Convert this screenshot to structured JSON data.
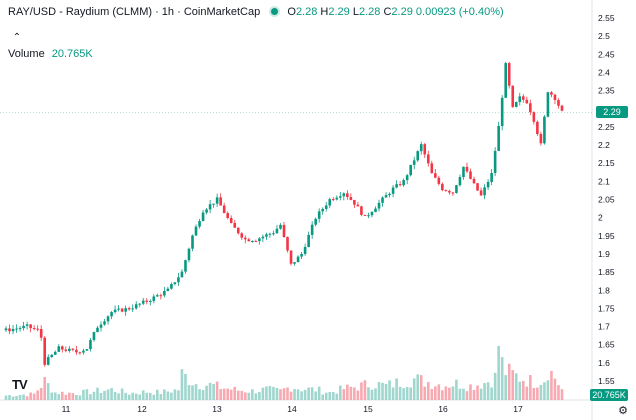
{
  "header": {
    "symbol": "RAY/USD - Raydium (CLMM) · 1h · CoinMarketCap",
    "open_label": "O",
    "open": "2.28",
    "high_label": "H",
    "high": "2.29",
    "low_label": "L",
    "low": "2.28",
    "close_label": "C",
    "close": "2.29",
    "change": "0.00923 (+0.40%)"
  },
  "volume_legend": {
    "label": "Volume",
    "value": "20.765K"
  },
  "price_tag": "2.29",
  "volume_tag": "20.765K",
  "logo_text": "TV",
  "colors": {
    "up": "#089981",
    "down": "#f23645",
    "vol_up": "#9fd6ce",
    "vol_down": "#f7a9b1"
  },
  "icons": {
    "collapse": "chevron-up-icon",
    "settings": "gear-icon",
    "logo": "tradingview-logo"
  },
  "chart_data": {
    "type": "candlestick",
    "title": "RAY/USD - Raydium (CLMM) · 1h · CoinMarketCap",
    "x_ticks": [
      "11",
      "12",
      "13",
      "14",
      "15",
      "16",
      "17"
    ],
    "y_ticks": [
      "1.55",
      "1.6",
      "1.65",
      "1.7",
      "1.75",
      "1.8",
      "1.85",
      "1.9",
      "1.95",
      "2",
      "2.05",
      "2.1",
      "2.15",
      "2.2",
      "2.25",
      "2.3",
      "2.35",
      "2.4",
      "2.45",
      "2.5",
      "2.55"
    ],
    "ylim": [
      1.51,
      2.57
    ],
    "current_price": 2.29,
    "anchors": [
      [
        0,
        1.69
      ],
      [
        6,
        1.7
      ],
      [
        9,
        1.69
      ],
      [
        10,
        1.67
      ],
      [
        11,
        1.6
      ],
      [
        15,
        1.64
      ],
      [
        20,
        1.63
      ],
      [
        23,
        1.64
      ],
      [
        26,
        1.7
      ],
      [
        30,
        1.74
      ],
      [
        35,
        1.75
      ],
      [
        40,
        1.77
      ],
      [
        44,
        1.79
      ],
      [
        46,
        1.8
      ],
      [
        50,
        1.85
      ],
      [
        53,
        1.95
      ],
      [
        56,
        2.02
      ],
      [
        60,
        2.05
      ],
      [
        64,
        1.98
      ],
      [
        68,
        1.94
      ],
      [
        71,
        1.94
      ],
      [
        76,
        1.96
      ],
      [
        78,
        1.98
      ],
      [
        81,
        1.87
      ],
      [
        84,
        1.9
      ],
      [
        88,
        2.0
      ],
      [
        92,
        2.05
      ],
      [
        96,
        2.07
      ],
      [
        99,
        2.04
      ],
      [
        102,
        2.0
      ],
      [
        106,
        2.04
      ],
      [
        110,
        2.08
      ],
      [
        113,
        2.1
      ],
      [
        116,
        2.16
      ],
      [
        118,
        2.2
      ],
      [
        121,
        2.12
      ],
      [
        124,
        2.08
      ],
      [
        127,
        2.07
      ],
      [
        130,
        2.14
      ],
      [
        133,
        2.09
      ],
      [
        135,
        2.06
      ],
      [
        138,
        2.12
      ],
      [
        140,
        2.25
      ],
      [
        142,
        2.42
      ],
      [
        144,
        2.3
      ],
      [
        146,
        2.33
      ],
      [
        148,
        2.32
      ],
      [
        150,
        2.27
      ],
      [
        152,
        2.2
      ],
      [
        154,
        2.35
      ],
      [
        156,
        2.33
      ],
      [
        158,
        2.29
      ]
    ],
    "volume_anchors": [
      [
        0,
        6
      ],
      [
        8,
        8
      ],
      [
        11,
        25
      ],
      [
        14,
        10
      ],
      [
        20,
        9
      ],
      [
        24,
        11
      ],
      [
        30,
        14
      ],
      [
        35,
        9
      ],
      [
        40,
        11
      ],
      [
        44,
        10
      ],
      [
        49,
        14
      ],
      [
        50,
        34
      ],
      [
        54,
        22
      ],
      [
        58,
        20
      ],
      [
        62,
        16
      ],
      [
        66,
        13
      ],
      [
        70,
        12
      ],
      [
        74,
        14
      ],
      [
        78,
        12
      ],
      [
        81,
        18
      ],
      [
        84,
        15
      ],
      [
        88,
        14
      ],
      [
        92,
        10
      ],
      [
        96,
        15
      ],
      [
        100,
        18
      ],
      [
        104,
        22
      ],
      [
        108,
        19
      ],
      [
        112,
        24
      ],
      [
        116,
        28
      ],
      [
        120,
        24
      ],
      [
        124,
        20
      ],
      [
        128,
        22
      ],
      [
        132,
        19
      ],
      [
        136,
        23
      ],
      [
        139,
        30
      ],
      [
        140,
        75
      ],
      [
        141,
        48
      ],
      [
        142,
        38
      ],
      [
        146,
        30
      ],
      [
        150,
        24
      ],
      [
        153,
        28
      ],
      [
        154,
        42
      ],
      [
        156,
        30
      ],
      [
        158,
        14
      ]
    ]
  }
}
